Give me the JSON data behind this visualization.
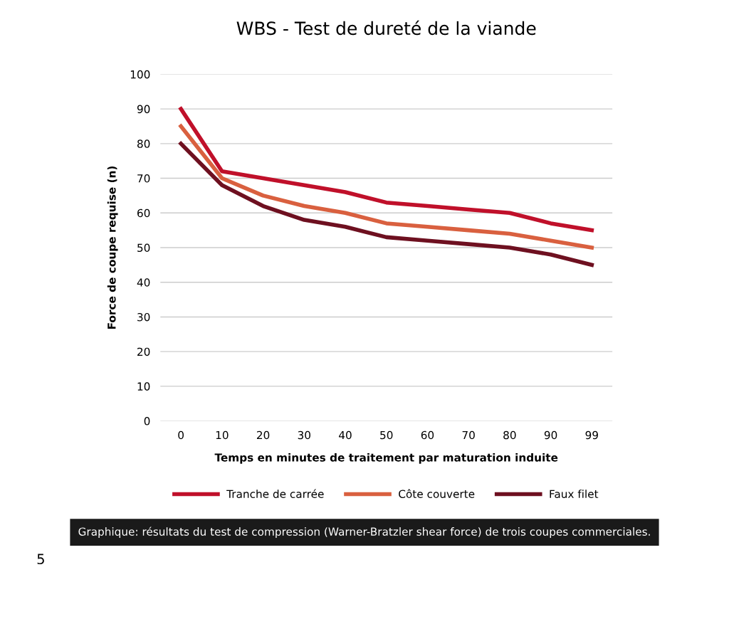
{
  "chart_data": {
    "type": "line",
    "title": "WBS - Test de dureté de la viande",
    "xlabel": "Temps en minutes de traitement par maturation induite",
    "ylabel": "Force de coupe requise (n)",
    "categories": [
      "0",
      "10",
      "20",
      "30",
      "40",
      "50",
      "60",
      "70",
      "80",
      "90",
      "99"
    ],
    "series": [
      {
        "name": "Tranche de carrée",
        "color": "#c0102a",
        "values": [
          90,
          72,
          70,
          68,
          66,
          63,
          62,
          61,
          60,
          57,
          55
        ]
      },
      {
        "name": "Côte couverte",
        "color": "#d9603f",
        "values": [
          85,
          70,
          65,
          62,
          60,
          57,
          56,
          55,
          54,
          52,
          50
        ]
      },
      {
        "name": "Faux filet",
        "color": "#6e1020",
        "values": [
          80,
          68,
          62,
          58,
          56,
          53,
          52,
          51,
          50,
          48,
          45
        ]
      }
    ],
    "ylim": [
      0,
      100
    ],
    "yticks": [
      0,
      10,
      20,
      30,
      40,
      50,
      60,
      70,
      80,
      90,
      100
    ],
    "grid": "y",
    "legend": "bottom",
    "line_style": "solid",
    "annotations": [
      "Graphique: résultats du test de compression (Warner-Bratzler shear force) de trois coupes commerciales.",
      "5"
    ]
  }
}
